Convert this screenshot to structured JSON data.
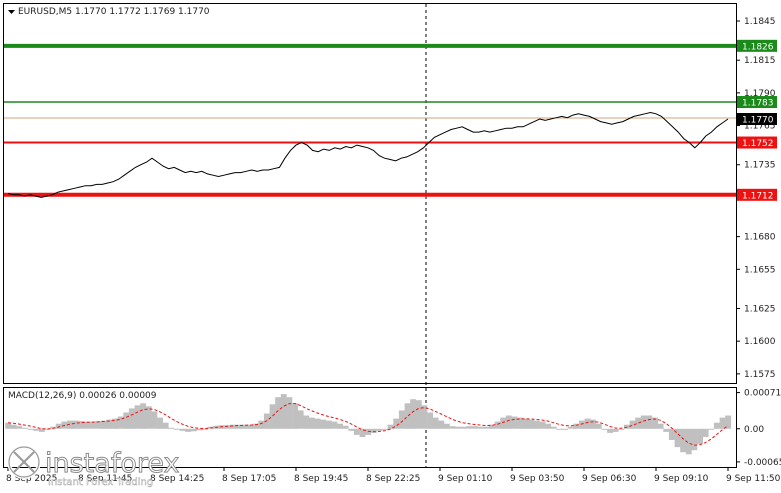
{
  "chart_data": [
    {
      "type": "line",
      "title": "EURUSD,M5  1.1770 1.1772 1.1769 1.1770",
      "symbol": "EURUSD,M5",
      "ohlc": [
        "1.1770",
        "1.1772",
        "1.1769",
        "1.1770"
      ],
      "y_ticks": [
        "1.1845",
        "1.1815",
        "1.1790",
        "1.1765",
        "1.1735",
        "1.1680",
        "1.1655",
        "1.1625",
        "1.1600",
        "1.1575"
      ],
      "ylim": [
        1.1568,
        1.1858
      ],
      "x_ticks": [
        "8 Sep 2025",
        "8 Sep 11:45",
        "8 Sep 14:25",
        "8 Sep 17:05",
        "8 Sep 19:45",
        "8 Sep 22:25",
        "9 Sep 01:10",
        "9 Sep 03:50",
        "9 Sep 06:30",
        "9 Sep 09:10",
        "9 Sep 11:50"
      ],
      "grid": false,
      "series": [
        {
          "values": [
            1.1713,
            1.1712,
            1.1712,
            1.1711,
            1.1712,
            1.1711,
            1.171,
            1.1711,
            1.1712,
            1.1714,
            1.1715,
            1.1716,
            1.1717,
            1.1718,
            1.1719,
            1.1719,
            1.172,
            1.172,
            1.1721,
            1.1722,
            1.1724,
            1.1727,
            1.173,
            1.1733,
            1.1735,
            1.1737,
            1.174,
            1.1737,
            1.1734,
            1.1732,
            1.1733,
            1.1731,
            1.1729,
            1.173,
            1.1729,
            1.173,
            1.1728,
            1.1727,
            1.1726,
            1.1727,
            1.1728,
            1.1729,
            1.1729,
            1.173,
            1.1731,
            1.173,
            1.1731,
            1.1731,
            1.1732,
            1.1733,
            1.174,
            1.1746,
            1.175,
            1.1752,
            1.175,
            1.1746,
            1.1745,
            1.1747,
            1.1746,
            1.1748,
            1.1747,
            1.1749,
            1.1748,
            1.175,
            1.1749,
            1.1748,
            1.1746,
            1.1742,
            1.174,
            1.1739,
            1.1738,
            1.174,
            1.1741,
            1.1743,
            1.1745,
            1.1748,
            1.1752,
            1.1756,
            1.1758,
            1.176,
            1.1762,
            1.1763,
            1.1764,
            1.1762,
            1.176,
            1.176,
            1.1761,
            1.176,
            1.1761,
            1.1762,
            1.1763,
            1.1763,
            1.1764,
            1.1764,
            1.1766,
            1.1768,
            1.177,
            1.1769,
            1.177,
            1.1771,
            1.1772,
            1.1771,
            1.1773,
            1.1774,
            1.1773,
            1.1772,
            1.177,
            1.1768,
            1.1767,
            1.1766,
            1.1767,
            1.1768,
            1.177,
            1.1772,
            1.1773,
            1.1774,
            1.1775,
            1.1774,
            1.1772,
            1.1768,
            1.1764,
            1.176,
            1.1755,
            1.1752,
            1.1748,
            1.1752,
            1.1757,
            1.176,
            1.1764,
            1.1767,
            1.177
          ],
          "x_start": "8 Sep 09:05",
          "x_end": "9 Sep 11:50"
        }
      ],
      "levels": [
        {
          "value": 1.1826,
          "label": "1.1826",
          "color": "#1a8a1a"
        },
        {
          "value": 1.1783,
          "label": "1.1783",
          "color": "#1a8a1a"
        },
        {
          "value": 1.177,
          "label": "1.1770",
          "color": "#000000"
        },
        {
          "value": 1.1752,
          "label": "1.1752",
          "color": "#ee1111"
        },
        {
          "value": 1.1712,
          "label": "1.1712",
          "color": "#ee1111"
        }
      ],
      "current_price_label": "1.1770"
    },
    {
      "type": "bar",
      "title": "MACD(12,26,9) 0.00026 0.00009",
      "y_ticks": [
        "0.00071",
        "0.00",
        "-0.00065"
      ],
      "ylim": [
        -0.00075,
        0.0008
      ],
      "series": [
        {
          "name": "MACD",
          "values": [
            0.00012,
            8e-05,
            5e-05,
            2e-05,
            0.0,
            -4e-05,
            -6e-05,
            -2e-05,
            4e-05,
            0.0001,
            0.00014,
            0.00016,
            0.00016,
            0.00015,
            0.00014,
            0.00014,
            0.00015,
            0.00016,
            0.00018,
            0.0002,
            0.00024,
            0.00032,
            0.0004,
            0.00046,
            0.0005,
            0.00044,
            0.00034,
            0.00022,
            0.00012,
            2e-05,
            -2e-05,
            -4e-05,
            -6e-05,
            -5e-05,
            -3e-05,
            0.0,
            4e-05,
            6e-05,
            7e-05,
            7e-05,
            8e-05,
            8e-05,
            8e-05,
            8e-05,
            0.0001,
            0.00016,
            0.0003,
            0.00048,
            0.00062,
            0.00068,
            0.00062,
            0.0005,
            0.00036,
            0.00026,
            0.00022,
            0.0002,
            0.00018,
            0.00016,
            0.00014,
            0.0001,
            6e-05,
            -4e-05,
            -0.00012,
            -0.00016,
            -0.00012,
            -8e-05,
            -4e-05,
            0.0,
            8e-05,
            0.0002,
            0.00036,
            0.0005,
            0.00058,
            0.00056,
            0.00046,
            0.00032,
            0.00022,
            0.00016,
            0.0001,
            5e-05,
            4e-05,
            4e-05,
            5e-05,
            5e-05,
            4e-05,
            4e-05,
            8e-05,
            0.00014,
            0.00022,
            0.00026,
            0.00024,
            0.00022,
            0.0002,
            0.00018,
            0.00016,
            0.00014,
            0.0001,
            4e-05,
            0.0,
            0.0,
            4e-05,
            0.0001,
            0.00016,
            0.0002,
            0.00018,
            0.0001,
            0.0,
            -8e-05,
            -6e-05,
            0.0,
            8e-05,
            0.00016,
            0.00022,
            0.00026,
            0.00026,
            0.00022,
            0.0001,
            -6e-05,
            -0.00022,
            -0.00036,
            -0.00046,
            -0.0005,
            -0.00042,
            -0.0003,
            -0.00016,
            -2e-05,
            0.00012,
            0.00022,
            0.00026
          ]
        }
      ]
    }
  ],
  "watermark": {
    "brand": "instaforex",
    "tagline": "Instant Forex Trading"
  }
}
